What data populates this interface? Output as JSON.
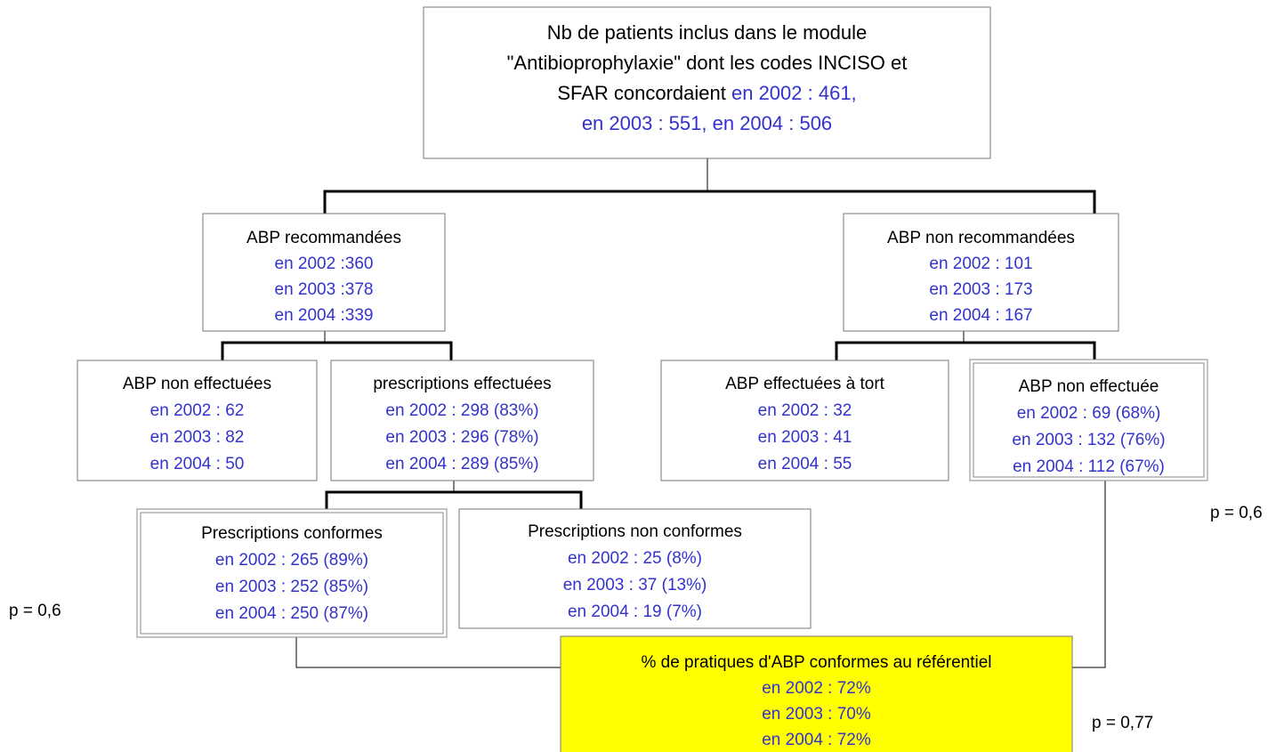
{
  "nodes": [
    {
      "label": [
        "Nb de patients inclus dans le module",
        "\"Antibioprophylaxie\" dont les codes INCISO et",
        "SFAR concordaient"
      ],
      "lines": [
        "en  2002 : 461,",
        "en 2003 : 551, en 2004 : 506"
      ]
    },
    {
      "label": [
        "ABP recommandées"
      ],
      "lines": [
        "en 2002 :360",
        "en 2003 :378",
        "en 2004 :339"
      ]
    },
    {
      "label": [
        "ABP non recommandées"
      ],
      "lines": [
        "en 2002 : 101",
        "en 2003 : 173",
        "en 2004 : 167"
      ]
    },
    {
      "label": [
        "ABP non effectuées"
      ],
      "lines": [
        "en 2002 : 62",
        "en 2003 : 82",
        "en 2004 : 50"
      ]
    },
    {
      "label": [
        "prescriptions effectuées"
      ],
      "lines": [
        "en 2002 : 298 (83%)",
        "en 2003 : 296 (78%)",
        "en 2004 : 289 (85%)"
      ]
    },
    {
      "label": [
        "ABP effectuées à tort"
      ],
      "lines": [
        "en 2002 : 32",
        "en 2003 : 41",
        "en 2004 : 55"
      ]
    },
    {
      "label": [
        "ABP non effectuée"
      ],
      "lines": [
        "en 2002 : 69 (68%)",
        "en 2003 : 132 (76%)",
        "en 2004 : 112 (67%)"
      ]
    },
    {
      "label": [
        "Prescriptions conformes"
      ],
      "lines": [
        "en 2002 : 265 (89%)",
        "en 2003 : 252 (85%)",
        "en 2004 : 250 (87%)"
      ]
    },
    {
      "label": [
        "Prescriptions non conformes"
      ],
      "lines": [
        "en 2002 : 25 (8%)",
        "en 2003 : 37 (13%)",
        "en 2004 : 19 (7%)"
      ]
    },
    {
      "label": [
        "% de pratiques d'ABP conformes au référentiel"
      ],
      "lines": [
        "en 2002 : 72%",
        "en 2003 : 70%",
        "en 2004 : 72%"
      ]
    }
  ],
  "annotations": [
    "p = 0,6",
    "p = 0,6",
    "p = 0,77"
  ]
}
